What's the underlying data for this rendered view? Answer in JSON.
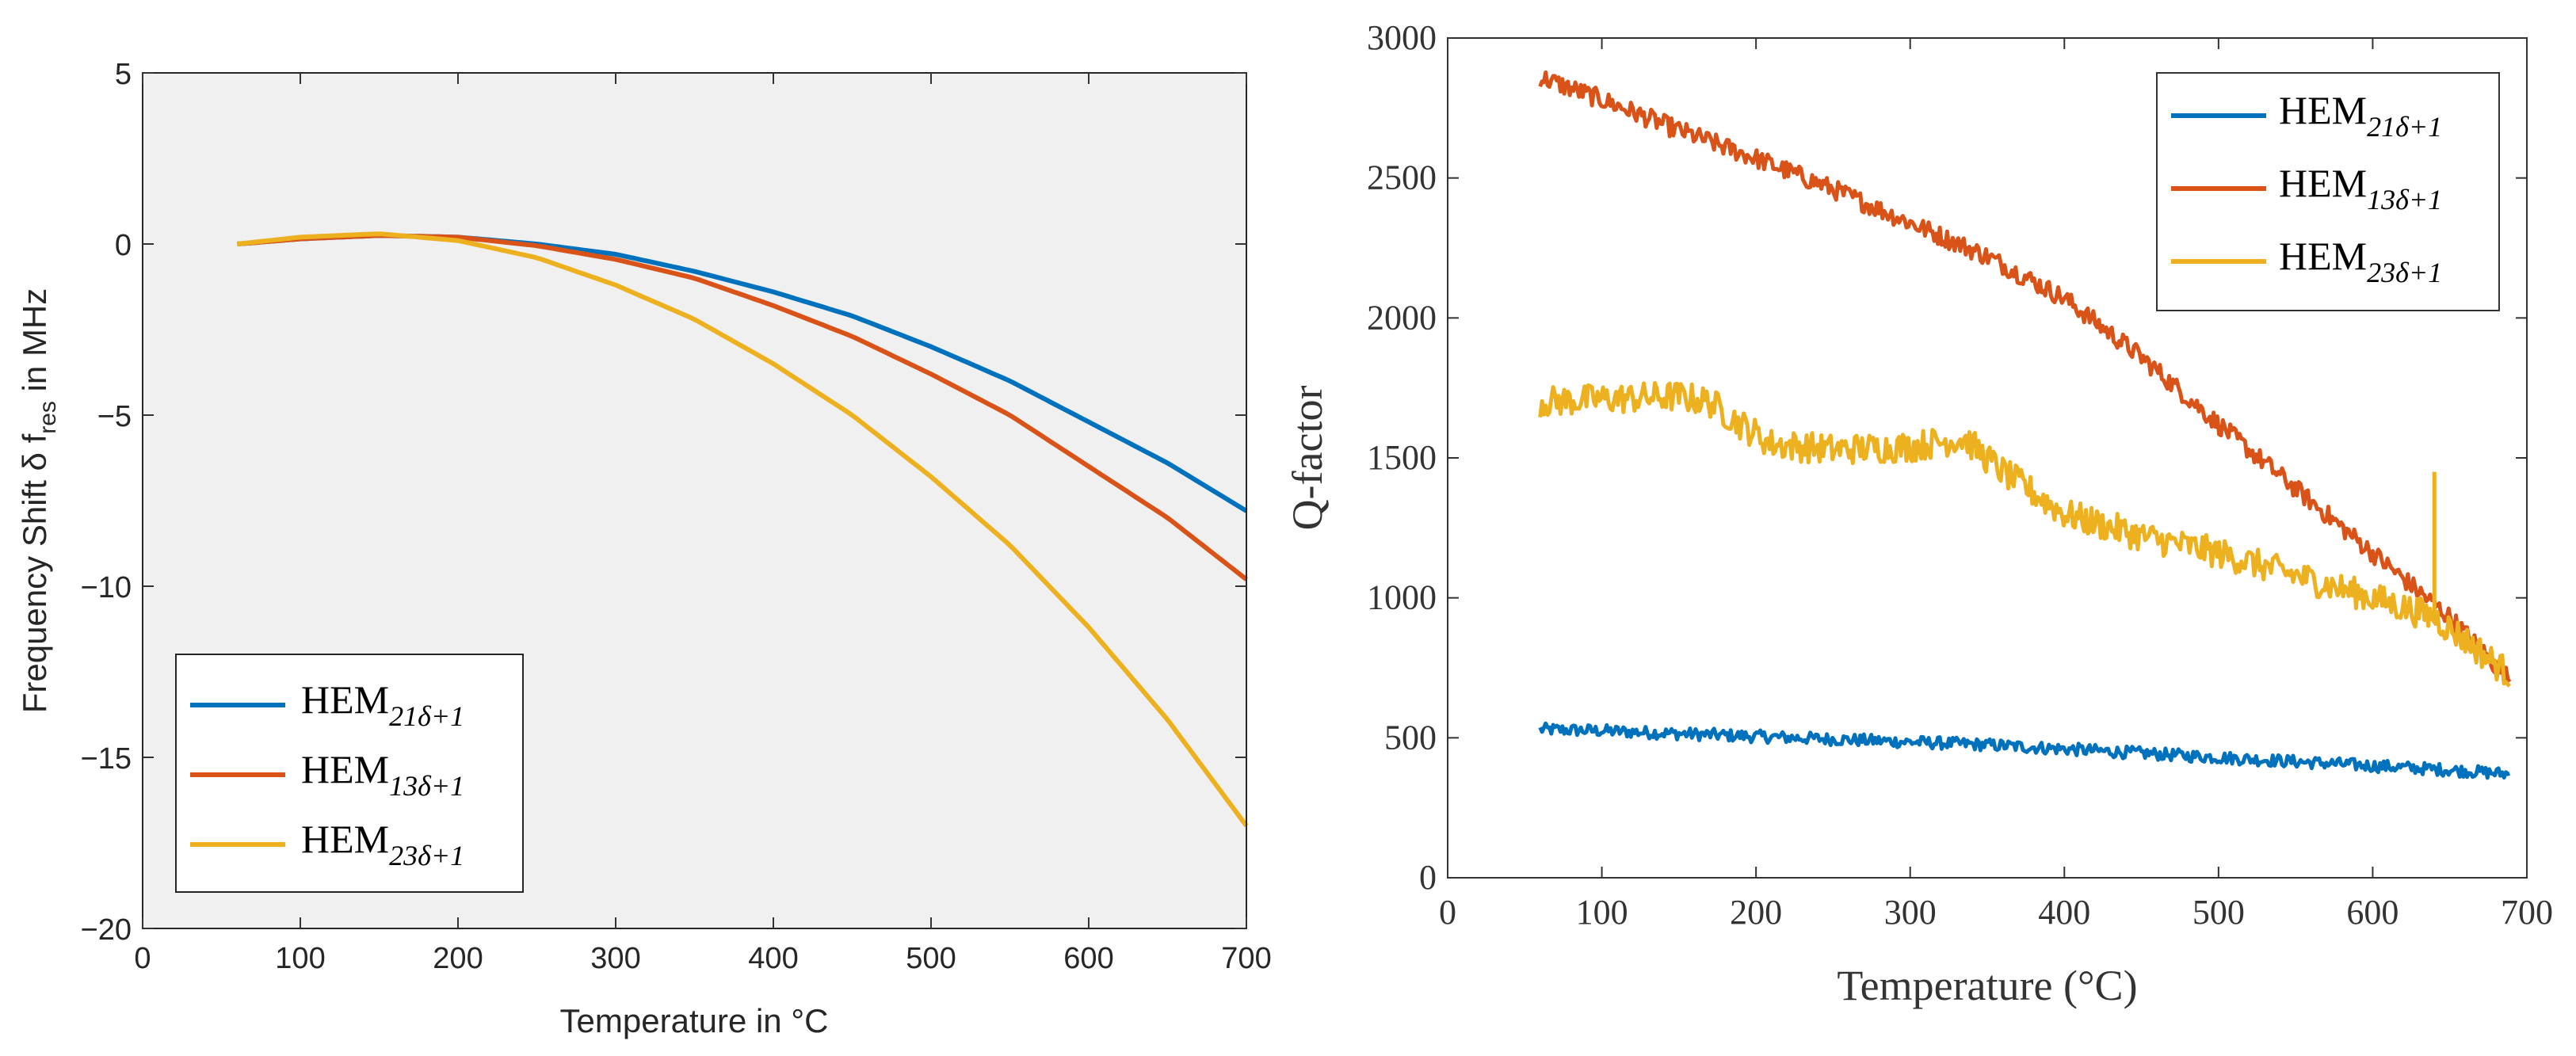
{
  "chart_data": [
    {
      "type": "line",
      "xlabel": "Temperature in °C",
      "ylabel": "Frequency Shift δ f",
      "ylabel_subscript": "res",
      "ylabel_suffix": " in MHz",
      "xlim": [
        0,
        700
      ],
      "ylim": [
        -20,
        5
      ],
      "xticks": [
        0,
        100,
        200,
        300,
        400,
        500,
        600,
        700
      ],
      "yticks": [
        -20,
        -15,
        -10,
        -5,
        0,
        5
      ],
      "grid": false,
      "legend_position": "bottom-left",
      "series": [
        {
          "name_main": "HEM",
          "name_sub": "21δ+1",
          "color": "#0072BD",
          "x": [
            60,
            100,
            150,
            200,
            250,
            300,
            350,
            400,
            450,
            500,
            550,
            600,
            650,
            700
          ],
          "y": [
            0,
            0.15,
            0.25,
            0.2,
            0.0,
            -0.3,
            -0.8,
            -1.4,
            -2.1,
            -3.0,
            -4.0,
            -5.2,
            -6.4,
            -7.8
          ]
        },
        {
          "name_main": "HEM",
          "name_sub": "13δ+1",
          "color": "#D95319",
          "x": [
            60,
            100,
            150,
            200,
            250,
            300,
            350,
            400,
            450,
            500,
            550,
            600,
            650,
            700
          ],
          "y": [
            0,
            0.15,
            0.25,
            0.2,
            -0.05,
            -0.45,
            -1.0,
            -1.8,
            -2.7,
            -3.8,
            -5.0,
            -6.5,
            -8.0,
            -9.8
          ]
        },
        {
          "name_main": "HEM",
          "name_sub": "23δ+1",
          "color": "#EDB120",
          "x": [
            60,
            100,
            150,
            200,
            250,
            300,
            350,
            400,
            450,
            500,
            550,
            600,
            650,
            700
          ],
          "y": [
            0,
            0.2,
            0.3,
            0.1,
            -0.4,
            -1.2,
            -2.2,
            -3.5,
            -5.0,
            -6.8,
            -8.8,
            -11.2,
            -13.9,
            -17.0
          ]
        }
      ]
    },
    {
      "type": "line",
      "xlabel": "Temperature (°C)",
      "ylabel": "Q-factor",
      "xlim": [
        0,
        700
      ],
      "ylim": [
        0,
        3000
      ],
      "xticks": [
        0,
        100,
        200,
        300,
        400,
        500,
        600,
        700
      ],
      "yticks": [
        0,
        500,
        1000,
        1500,
        2000,
        2500,
        3000
      ],
      "grid": false,
      "legend_position": "top-right",
      "series": [
        {
          "name_main": "HEM",
          "name_sub": "21δ+1",
          "color": "#0072BD",
          "x": [
            60,
            100,
            150,
            200,
            250,
            300,
            350,
            400,
            450,
            500,
            550,
            600,
            650,
            690
          ],
          "y": [
            530,
            525,
            515,
            505,
            495,
            485,
            475,
            460,
            445,
            430,
            415,
            400,
            385,
            370
          ]
        },
        {
          "name_main": "HEM",
          "name_sub": "13δ+1",
          "color": "#D95319",
          "x": [
            60,
            100,
            150,
            200,
            250,
            300,
            350,
            400,
            450,
            500,
            550,
            600,
            650,
            690
          ],
          "y": [
            2860,
            2780,
            2670,
            2570,
            2460,
            2340,
            2220,
            2070,
            1860,
            1620,
            1390,
            1160,
            930,
            700
          ]
        },
        {
          "name_main": "HEM",
          "name_sub": "23δ+1",
          "color": "#EDB120",
          "x": [
            60,
            100,
            150,
            170,
            190,
            210,
            250,
            300,
            335,
            360,
            400,
            450,
            500,
            550,
            600,
            640,
            660,
            690
          ],
          "y": [
            1700,
            1710,
            1720,
            1700,
            1620,
            1550,
            1530,
            1540,
            1570,
            1450,
            1300,
            1220,
            1160,
            1080,
            1000,
            930,
            850,
            720
          ]
        }
      ]
    }
  ]
}
